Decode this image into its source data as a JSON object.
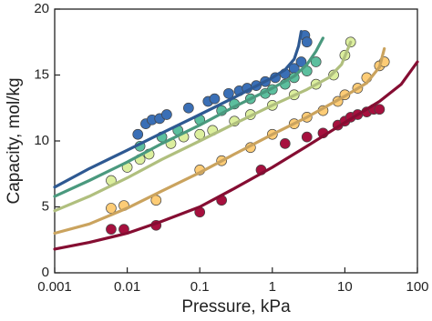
{
  "chart_data": {
    "type": "scatter",
    "x_label": "Pressure, kPa",
    "y_label": "Capacity, mol/kg",
    "xscale": "log",
    "xlim": [
      0.001,
      100
    ],
    "ylim": [
      0,
      20
    ],
    "xticks": [
      0.001,
      0.01,
      0.1,
      1,
      10,
      100
    ],
    "yticks": [
      0,
      5,
      10,
      15,
      20
    ],
    "series": [
      {
        "color": "#3a6fb6",
        "x": [
          0.014,
          0.018,
          0.022,
          0.028,
          0.035,
          0.07,
          0.13,
          0.16,
          0.25,
          0.35,
          0.45,
          0.6,
          0.8,
          1.1,
          1.5,
          2.0,
          2.5,
          2.8,
          3.0
        ],
        "values": [
          10.5,
          11.3,
          11.6,
          11.7,
          12.0,
          12.5,
          13.0,
          13.2,
          13.6,
          13.8,
          14.0,
          14.2,
          14.5,
          14.8,
          15.1,
          15.5,
          16.0,
          18.0,
          17.5
        ],
        "fit": {
          "x": [
            0.001,
            0.003,
            0.01,
            0.03,
            0.1,
            0.3,
            1,
            1.5,
            2,
            2.3,
            2.5
          ],
          "values": [
            6.5,
            7.9,
            9.3,
            10.6,
            12.0,
            13.3,
            14.8,
            15.4,
            16.2,
            17.2,
            18.3
          ]
        }
      },
      {
        "color": "#5cbf9e",
        "x": [
          0.015,
          0.03,
          0.05,
          0.1,
          0.2,
          0.3,
          0.5,
          0.8,
          1,
          1.5,
          2,
          3,
          4
        ],
        "values": [
          9.6,
          10.3,
          10.8,
          11.6,
          12.3,
          12.8,
          13.2,
          13.6,
          13.9,
          14.3,
          14.8,
          15.3,
          16.0
        ],
        "fit": {
          "x": [
            0.001,
            0.003,
            0.01,
            0.03,
            0.1,
            0.3,
            1,
            2,
            3,
            4,
            5
          ],
          "values": [
            5.8,
            7.0,
            8.4,
            9.8,
            11.2,
            12.6,
            14.0,
            14.9,
            15.8,
            16.8,
            17.8
          ]
        }
      },
      {
        "color": "#dcef9e",
        "x": [
          0.006,
          0.01,
          0.015,
          0.02,
          0.04,
          0.06,
          0.1,
          0.15,
          0.3,
          0.5,
          1,
          2,
          4,
          7,
          10,
          12
        ],
        "values": [
          7.0,
          8.0,
          8.6,
          9.0,
          9.8,
          10.3,
          10.5,
          10.8,
          11.5,
          12.0,
          12.7,
          13.5,
          14.3,
          15.0,
          16.5,
          17.5
        ],
        "fit": {
          "x": [
            0.001,
            0.003,
            0.01,
            0.03,
            0.1,
            0.3,
            1,
            3,
            6,
            9,
            12
          ],
          "values": [
            4.7,
            5.8,
            7.2,
            8.6,
            10.0,
            11.3,
            12.7,
            13.9,
            14.8,
            15.8,
            17.5
          ]
        }
      },
      {
        "color": "#fdcc76",
        "x": [
          0.006,
          0.009,
          0.025,
          0.1,
          0.2,
          0.5,
          1,
          2,
          3,
          5,
          8,
          10,
          15,
          20,
          30,
          35
        ],
        "values": [
          4.9,
          5.1,
          5.5,
          7.8,
          8.5,
          9.5,
          10.5,
          11.3,
          11.8,
          12.3,
          13.0,
          13.5,
          14.0,
          14.8,
          15.7,
          16.0
        ],
        "fit": {
          "x": [
            0.001,
            0.003,
            0.01,
            0.03,
            0.1,
            0.3,
            1,
            3,
            10,
            20,
            30,
            35
          ],
          "values": [
            3.0,
            3.7,
            4.9,
            6.2,
            7.6,
            9.0,
            10.5,
            11.8,
            13.4,
            14.4,
            15.6,
            17.0
          ]
        }
      },
      {
        "color": "#a6103e",
        "x": [
          0.006,
          0.009,
          0.025,
          0.1,
          0.2,
          0.7,
          1.5,
          3,
          5,
          8,
          10,
          12,
          15,
          20,
          25,
          30
        ],
        "values": [
          3.3,
          3.3,
          3.6,
          4.6,
          5.5,
          7.8,
          9.8,
          10.3,
          10.6,
          11.2,
          11.5,
          11.8,
          12.0,
          12.2,
          12.4,
          12.4
        ],
        "fit": {
          "x": [
            0.001,
            0.003,
            0.01,
            0.03,
            0.1,
            0.3,
            1,
            3,
            10,
            30,
            60,
            100
          ],
          "values": [
            1.8,
            2.3,
            3.0,
            3.9,
            5.0,
            6.4,
            8.0,
            9.6,
            11.4,
            13.0,
            14.3,
            16.0
          ]
        }
      }
    ]
  }
}
